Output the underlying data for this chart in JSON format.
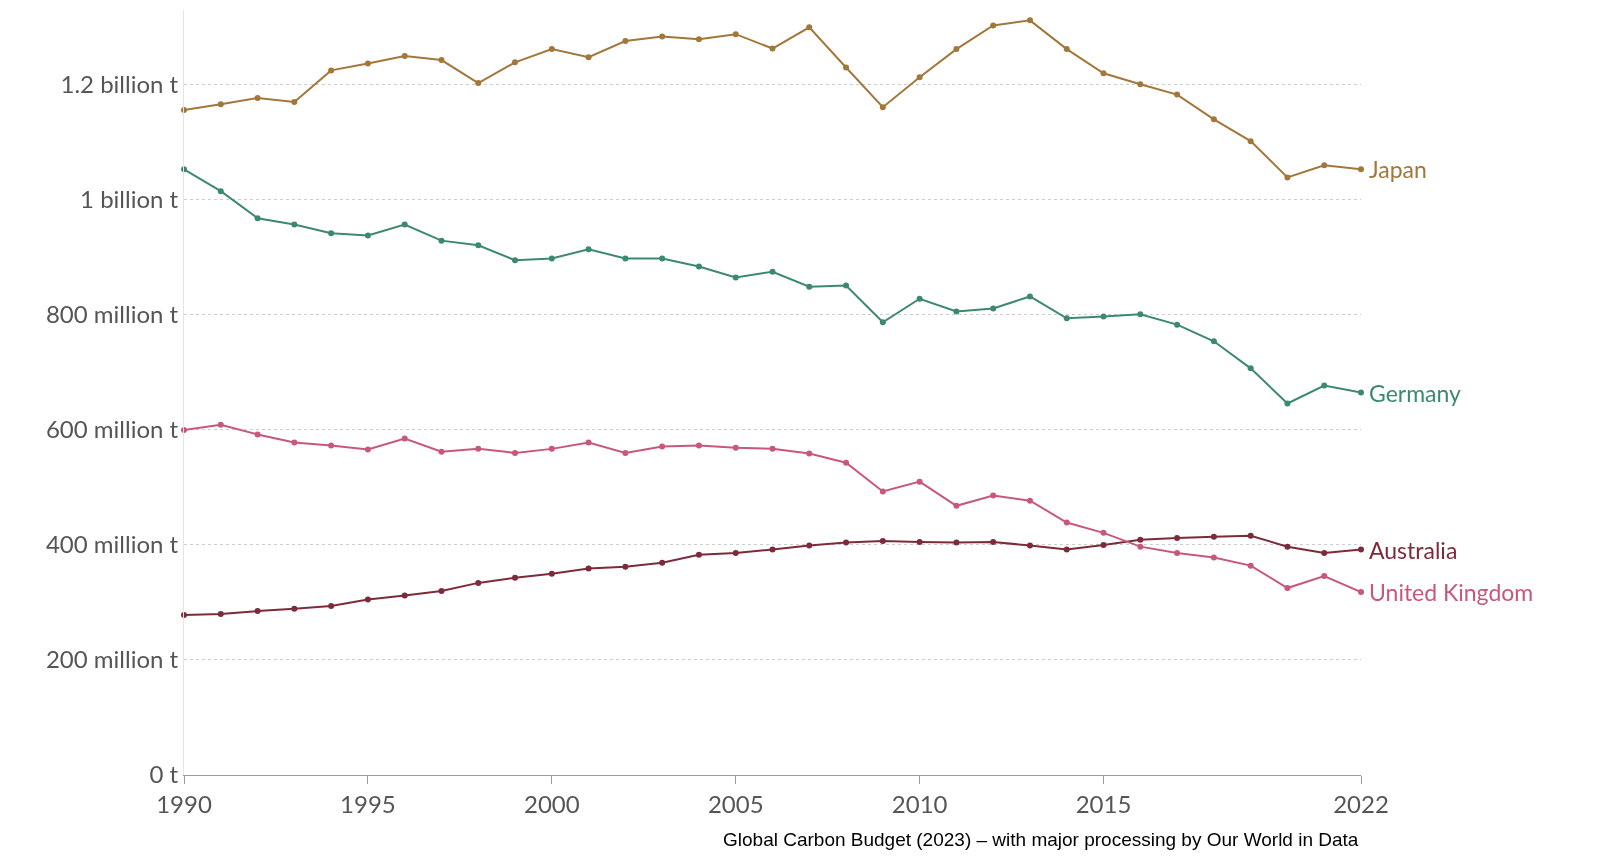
{
  "chart_data": {
    "type": "line",
    "x": [
      1990,
      1991,
      1992,
      1993,
      1994,
      1995,
      1996,
      1997,
      1998,
      1999,
      2000,
      2001,
      2002,
      2003,
      2004,
      2005,
      2006,
      2007,
      2008,
      2009,
      2010,
      2011,
      2012,
      2013,
      2014,
      2015,
      2016,
      2017,
      2018,
      2019,
      2020,
      2021,
      2022
    ],
    "series": [
      {
        "name": "Japan",
        "color": "#a2773a",
        "values": [
          1156000000,
          1166000000,
          1177000000,
          1170000000,
          1225000000,
          1237000000,
          1250000000,
          1243000000,
          1203000000,
          1239000000,
          1262000000,
          1248000000,
          1276000000,
          1284000000,
          1279000000,
          1288000000,
          1263000000,
          1300000000,
          1230000000,
          1161000000,
          1213000000,
          1262000000,
          1303000000,
          1312000000,
          1262000000,
          1220000000,
          1201000000,
          1183000000,
          1140000000,
          1102000000,
          1039000000,
          1060000000,
          1053000000
        ]
      },
      {
        "name": "Germany",
        "color": "#3c8a6c",
        "values": [
          1053000000,
          1015000000,
          968000000,
          957000000,
          942000000,
          938000000,
          957000000,
          929000000,
          921000000,
          895000000,
          898000000,
          914000000,
          898000000,
          898000000,
          884000000,
          865000000,
          875000000,
          849000000,
          851000000,
          787000000,
          828000000,
          806000000,
          811000000,
          832000000,
          794000000,
          797000000,
          801000000,
          783000000,
          754000000,
          707000000,
          646000000,
          677000000,
          665000000
        ]
      },
      {
        "name": "Australia",
        "color": "#7d2b3b",
        "values": [
          278000000,
          280000000,
          285000000,
          289000000,
          294000000,
          305000000,
          312000000,
          320000000,
          334000000,
          343000000,
          350000000,
          359000000,
          362000000,
          369000000,
          383000000,
          386000000,
          392000000,
          399000000,
          404000000,
          407000000,
          405000000,
          404000000,
          405000000,
          399000000,
          392000000,
          400000000,
          409000000,
          412000000,
          414000000,
          416000000,
          397000000,
          386000000,
          392000000
        ]
      },
      {
        "name": "United Kingdom",
        "color": "#c8587a",
        "values": [
          600000000,
          609000000,
          592000000,
          578000000,
          573000000,
          566000000,
          585000000,
          562000000,
          567000000,
          560000000,
          567000000,
          578000000,
          560000000,
          571000000,
          573000000,
          569000000,
          567000000,
          559000000,
          543000000,
          493000000,
          510000000,
          468000000,
          486000000,
          477000000,
          439000000,
          421000000,
          397000000,
          386000000,
          378000000,
          364000000,
          325000000,
          346000000,
          318000000
        ]
      }
    ],
    "xlim": [
      1990,
      2022
    ],
    "xticks": [
      1990,
      1995,
      2000,
      2005,
      2010,
      2015,
      2022
    ],
    "ylim": [
      0,
      1330000000
    ],
    "yticks": [
      {
        "value": 0,
        "label": "0 t"
      },
      {
        "value": 200000000,
        "label": "200 million t"
      },
      {
        "value": 400000000,
        "label": "400 million t"
      },
      {
        "value": 600000000,
        "label": "600 million t"
      },
      {
        "value": 800000000,
        "label": "800 million t"
      },
      {
        "value": 1000000000,
        "label": "1 billion t"
      },
      {
        "value": 1200000000,
        "label": "1.2 billion t"
      }
    ],
    "grid": "y",
    "marker": "circle",
    "line_style": "solid",
    "annotations": [
      "Global Carbon Budget (2023) – with major processing by Our World in Data"
    ]
  }
}
